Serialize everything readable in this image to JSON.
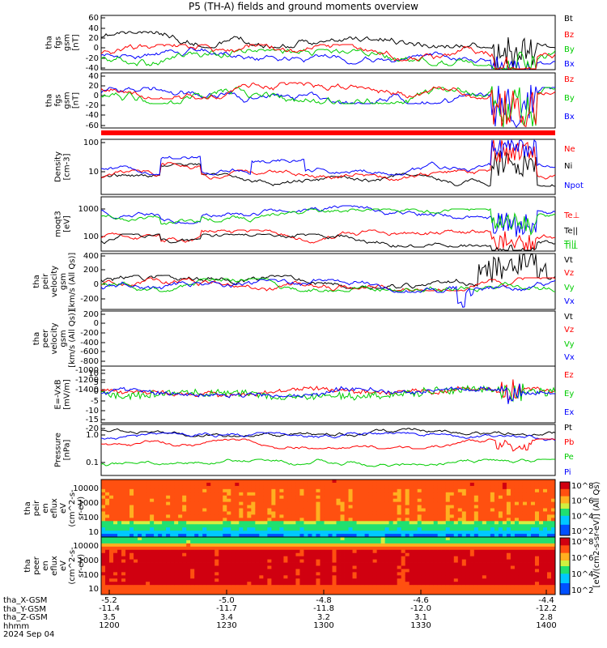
{
  "title": "P5 (TH-A) fields and ground moments overview",
  "footer": {
    "row_labels": [
      "tha_X-GSM",
      "tha_Y-GSM",
      "tha_Z-GSM",
      "hhmm",
      "2024 Sep 04"
    ],
    "columns": [
      {
        "x": "-5.2",
        "y": "-11.4",
        "z": "3.5",
        "hhmm": "1200"
      },
      {
        "x": "-5.0",
        "y": "-11.7",
        "z": "3.4",
        "hhmm": "1230"
      },
      {
        "x": "-4.8",
        "y": "-11.8",
        "z": "3.2",
        "hhmm": "1300"
      },
      {
        "x": "-4.6",
        "y": "-12.0",
        "z": "3.1",
        "hhmm": "1330"
      },
      {
        "x": "-4.4",
        "y": "-12.2",
        "z": "2.8",
        "hhmm": "1400"
      }
    ]
  },
  "colorbar_label": "[eV/(cm2-s-sr-eV)] (All Qs)",
  "colorbar_ticks": [
    "10^8",
    "10^6",
    "10^4",
    "10^2"
  ],
  "chart_data": [
    {
      "type": "line",
      "panel": "fgs_gsm_1",
      "ylabel": [
        "tha",
        "fgs",
        "gsm",
        "[nT]"
      ],
      "yticks": [
        "60",
        "40",
        "20",
        "0",
        "-20",
        "-40"
      ],
      "ylim": [
        -45,
        65
      ],
      "series": [
        {
          "name": "Bt",
          "color": "#000000",
          "base": 40,
          "amp": 8
        },
        {
          "name": "Bz",
          "color": "#ff0000",
          "base": 22,
          "amp": 8
        },
        {
          "name": "By",
          "color": "#00cc00",
          "base": 15,
          "amp": 10
        },
        {
          "name": "Bx",
          "color": "#0000ff",
          "base": 28,
          "amp": 8
        }
      ]
    },
    {
      "type": "line",
      "panel": "fgs_gsm_2",
      "ylabel": [
        "tha",
        "fgs",
        "gsm",
        "[nT]"
      ],
      "yticks": [
        "40",
        "20",
        "0",
        "-20",
        "-40",
        "-60"
      ],
      "ylim": [
        -70,
        45
      ],
      "series": [
        {
          "name": "Bz",
          "color": "#ff0000",
          "base": 20,
          "amp": 8
        },
        {
          "name": "By",
          "color": "#00cc00",
          "base": 8,
          "amp": 10
        },
        {
          "name": "Bx",
          "color": "#0000ff",
          "base": 10,
          "amp": 10
        }
      ]
    },
    {
      "type": "line",
      "panel": "density",
      "ylabel": [
        "Density",
        "[cm-3]"
      ],
      "yticks": [
        "100",
        "10"
      ],
      "series": [
        {
          "name": "Ne",
          "color": "#ff0000"
        },
        {
          "name": "Ni",
          "color": "#000000"
        },
        {
          "name": "Npot",
          "color": "#0000ff"
        }
      ]
    },
    {
      "type": "line",
      "panel": "temperature",
      "ylabel": [
        "moqt3",
        "[eV]"
      ],
      "yticks": [
        "1000",
        "100"
      ],
      "series": [
        {
          "name": "Te⊥",
          "color": "#ff0000"
        },
        {
          "name": "Te||",
          "color": "#000000"
        },
        {
          "name": "Ti⊥",
          "color": "#00cc00"
        },
        {
          "name": "Ti||",
          "color": "#00cc00"
        }
      ]
    },
    {
      "type": "line",
      "panel": "peir_velocity",
      "ylabel": [
        "tha",
        "peir",
        "velocity",
        "gsm",
        "[km/s (All Qs)]"
      ],
      "yticks": [
        "400",
        "200",
        "0",
        "-200"
      ],
      "ylim": [
        -250,
        420
      ],
      "series": [
        {
          "name": "Vt",
          "color": "#000000"
        },
        {
          "name": "Vz",
          "color": "#ff0000"
        },
        {
          "name": "Vy",
          "color": "#00cc00"
        },
        {
          "name": "Vx",
          "color": "#0000ff"
        }
      ]
    },
    {
      "type": "line",
      "panel": "peer_velocity",
      "ylabel": [
        "tha",
        "peer",
        "velocity",
        "gsm",
        "[km/s (All Qs)]"
      ],
      "yticks": [
        "200",
        "0",
        "-200",
        "-400",
        "-600",
        "-800",
        "-1000",
        "-1200",
        "-1400"
      ],
      "series": [
        {
          "name": "Vt",
          "color": "#000000"
        },
        {
          "name": "Vz",
          "color": "#ff0000"
        },
        {
          "name": "Vy",
          "color": "#00cc00"
        },
        {
          "name": "Vx",
          "color": "#0000ff"
        }
      ]
    },
    {
      "type": "line",
      "panel": "efield",
      "ylabel": [
        "E=-VxB",
        "[mV/m]"
      ],
      "yticks": [
        "10",
        "5",
        "0",
        "-5",
        "-10",
        "-15",
        "-20"
      ],
      "ylim": [
        -22,
        12
      ],
      "series": [
        {
          "name": "Ez",
          "color": "#ff0000"
        },
        {
          "name": "Ey",
          "color": "#00cc00"
        },
        {
          "name": "Ex",
          "color": "#0000ff"
        }
      ]
    },
    {
      "type": "line",
      "panel": "pressure",
      "ylabel": [
        "Pressure",
        "[nPa]"
      ],
      "yticks": [
        "1.0",
        "0.1"
      ],
      "series": [
        {
          "name": "Pt",
          "color": "#000000"
        },
        {
          "name": "Pb",
          "color": "#ff0000"
        },
        {
          "name": "Pe",
          "color": "#00cc00"
        },
        {
          "name": "Pi",
          "color": "#0000ff"
        }
      ]
    },
    {
      "type": "heatmap",
      "panel": "peir_en_eflux",
      "ylabel": [
        "tha",
        "peir",
        "en",
        "eflux",
        "eV",
        "(cm^2-s-",
        "sr-eV)"
      ],
      "yticks": [
        "10000",
        "1000",
        "100",
        "10"
      ]
    },
    {
      "type": "heatmap",
      "panel": "peer_en_eflux",
      "ylabel": [
        "tha",
        "peer",
        "en",
        "eflux",
        "eV",
        "(cm^2-s-",
        "sr-eV)"
      ],
      "yticks": [
        "10000",
        "1000",
        "100",
        "10"
      ]
    }
  ]
}
